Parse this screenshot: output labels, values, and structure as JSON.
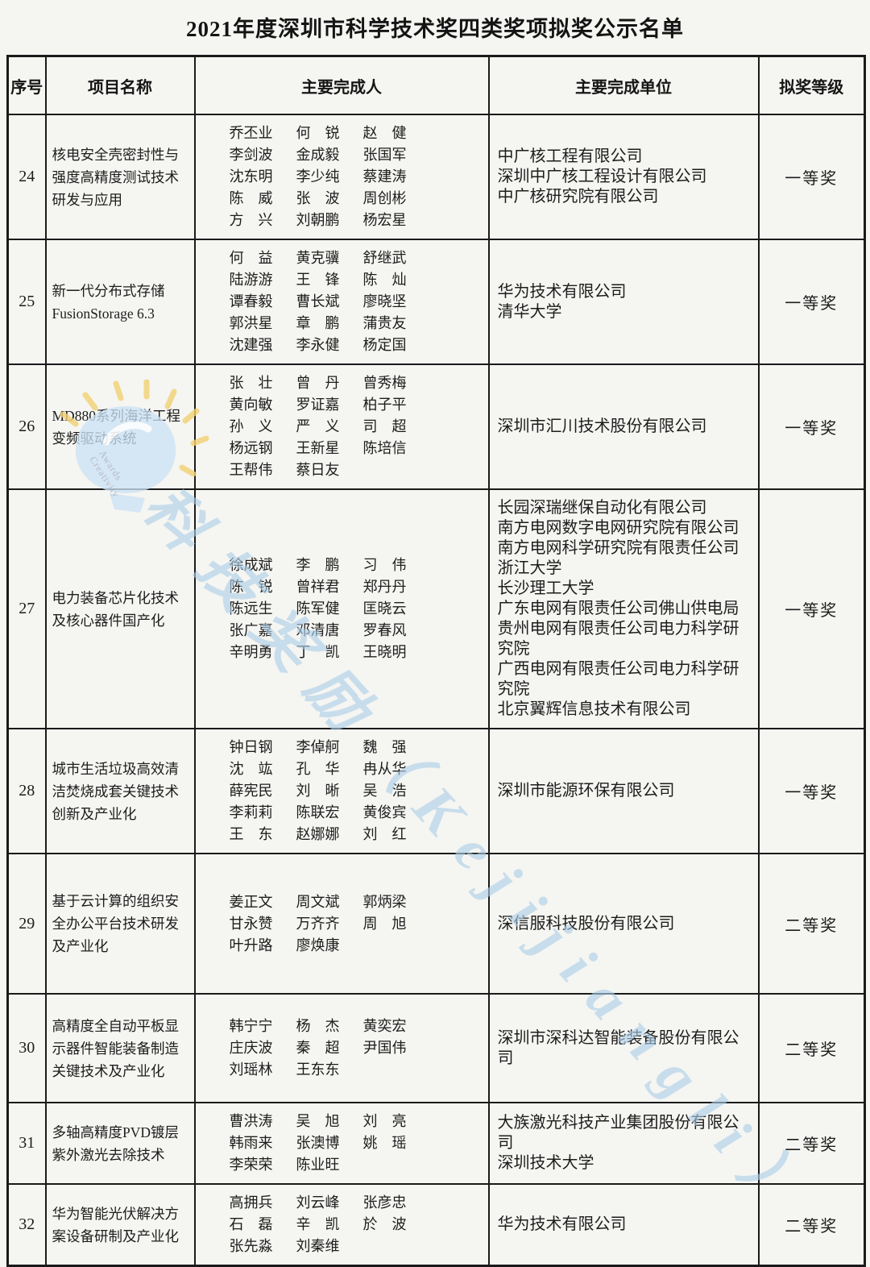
{
  "title": "2021年度深圳市科学技术奖四类奖项拟奖公示名单",
  "table": {
    "headers": [
      "序号",
      "项目名称",
      "主要完成人",
      "主要完成单位",
      "拟奖等级"
    ],
    "rows": [
      {
        "no": "24",
        "project": "核电安全壳密封性与强度高精度测试技术研发与应用",
        "people": [
          "乔丕业",
          "何锐",
          "赵健",
          "李剑波",
          "金成毅",
          "张国军",
          "沈东明",
          "李少纯",
          "蔡建涛",
          "陈威",
          "张波",
          "周创彬",
          "方兴",
          "刘朝鹏",
          "杨宏星"
        ],
        "units": [
          "中广核工程有限公司",
          "深圳中广核工程设计有限公司",
          "中广核研究院有限公司"
        ],
        "award": "一等奖"
      },
      {
        "no": "25",
        "project": "新一代分布式存储FusionStorage 6.3",
        "people": [
          "何益",
          "黄克骥",
          "舒继武",
          "陆游游",
          "王锋",
          "陈灿",
          "谭春毅",
          "曹长斌",
          "廖晓坚",
          "郭洪星",
          "章鹏",
          "蒲贵友",
          "沈建强",
          "李永健",
          "杨定国"
        ],
        "units": [
          "华为技术有限公司",
          "清华大学"
        ],
        "award": "一等奖"
      },
      {
        "no": "26",
        "project": "MD880系列海洋工程变频驱动系统",
        "people": [
          "张壮",
          "曾丹",
          "曾秀梅",
          "黄向敏",
          "罗证嘉",
          "柏子平",
          "孙义",
          "严义",
          "司超",
          "杨远钢",
          "王新星",
          "陈培信",
          "王帮伟",
          "蔡日友"
        ],
        "units": [
          "深圳市汇川技术股份有限公司"
        ],
        "award": "一等奖"
      },
      {
        "no": "27",
        "project": "电力装备芯片化技术及核心器件国产化",
        "people": [
          "徐成斌",
          "李鹏",
          "习伟",
          "陈锐",
          "曾祥君",
          "郑丹丹",
          "陈远生",
          "陈军健",
          "匡晓云",
          "张广嘉",
          "邓清唐",
          "罗春风",
          "辛明勇",
          "丁凯",
          "王晓明"
        ],
        "units": [
          "长园深瑞继保自动化有限公司",
          "南方电网数字电网研究院有限公司",
          "南方电网科学研究院有限责任公司",
          "浙江大学",
          "长沙理工大学",
          "广东电网有限责任公司佛山供电局",
          "贵州电网有限责任公司电力科学研究院",
          "广西电网有限责任公司电力科学研究院",
          "北京翼辉信息技术有限公司"
        ],
        "award": "一等奖"
      },
      {
        "no": "28",
        "project": "城市生活垃圾高效清洁焚烧成套关键技术创新及产业化",
        "people": [
          "钟日钢",
          "李倬舸",
          "魏强",
          "沈竑",
          "孔华",
          "冉从华",
          "薛宪民",
          "刘晰",
          "吴浩",
          "李莉莉",
          "陈联宏",
          "黄俊宾",
          "王东",
          "赵娜娜",
          "刘红"
        ],
        "units": [
          "深圳市能源环保有限公司"
        ],
        "award": "一等奖"
      },
      {
        "no": "29",
        "project": "基于云计算的组织安全办公平台技术研发及产业化",
        "people": [
          "姜正文",
          "周文斌",
          "郭炳梁",
          "甘永赞",
          "万齐齐",
          "周旭",
          "叶升路",
          "廖焕康"
        ],
        "units": [
          "深信服科技股份有限公司"
        ],
        "award": "二等奖"
      },
      {
        "no": "30",
        "project": "高精度全自动平板显示器件智能装备制造关键技术及产业化",
        "people": [
          "韩宁宁",
          "杨杰",
          "黄奕宏",
          "庄庆波",
          "秦超",
          "尹国伟",
          "刘瑶林",
          "王东东"
        ],
        "units": [
          "深圳市深科达智能装备股份有限公司"
        ],
        "award": "二等奖"
      },
      {
        "no": "31",
        "project": "多轴高精度PVD镀层紫外激光去除技术",
        "people": [
          "曹洪涛",
          "吴旭",
          "刘亮",
          "韩雨来",
          "张澳博",
          "姚瑶",
          "李荣荣",
          "陈业旺"
        ],
        "units": [
          "大族激光科技产业集团股份有限公司",
          "深圳技术大学"
        ],
        "award": "二等奖"
      },
      {
        "no": "32",
        "project": "华为智能光伏解决方案设备研制及产业化",
        "people": [
          "高拥兵",
          "刘云峰",
          "张彦忠",
          "石磊",
          "辛凯",
          "於波",
          "张先淼",
          "刘秦维"
        ],
        "units": [
          "华为技术有限公司"
        ],
        "award": "二等奖"
      }
    ]
  },
  "watermark": {
    "text": "科技奖励（Kejijiangli）",
    "small_text": "Awards Creativity"
  }
}
